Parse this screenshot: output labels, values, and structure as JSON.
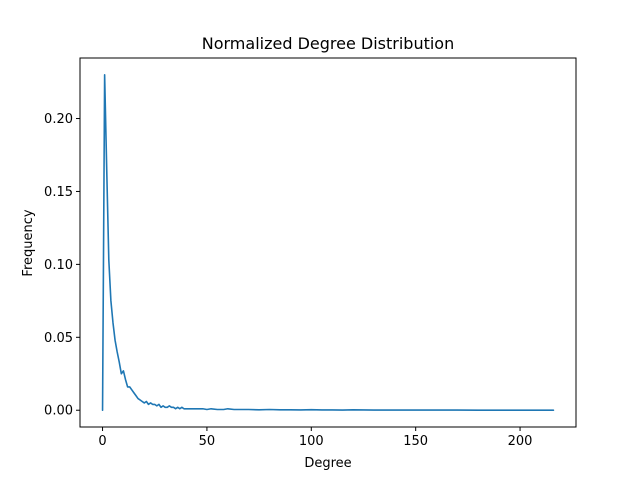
{
  "chart_data": {
    "type": "line",
    "title": "Normalized Degree Distribution",
    "xlabel": "Degree",
    "ylabel": "Frequency",
    "xlim": [
      -10.8,
      226.8
    ],
    "ylim": [
      -0.0115,
      0.2415
    ],
    "xticks": [
      0,
      50,
      100,
      150,
      200
    ],
    "xtick_labels": [
      "0",
      "50",
      "100",
      "150",
      "200"
    ],
    "yticks": [
      0.0,
      0.05,
      0.1,
      0.15,
      0.2
    ],
    "ytick_labels": [
      "0.00",
      "0.05",
      "0.10",
      "0.15",
      "0.20"
    ],
    "grid": false,
    "series": [
      {
        "color": "#1f77b4",
        "x": [
          0,
          1,
          2,
          3,
          4,
          5,
          6,
          7,
          8,
          9,
          10,
          11,
          12,
          13,
          14,
          15,
          16,
          17,
          18,
          19,
          20,
          21,
          22,
          23,
          24,
          25,
          26,
          27,
          28,
          29,
          30,
          31,
          32,
          33,
          34,
          35,
          36,
          37,
          38,
          39,
          40,
          42,
          44,
          46,
          48,
          50,
          52,
          55,
          58,
          60,
          63,
          66,
          70,
          75,
          80,
          85,
          90,
          95,
          100,
          105,
          110,
          115,
          120,
          130,
          140,
          150,
          160,
          170,
          180,
          190,
          200,
          210,
          216
        ],
        "y": [
          0.0,
          0.23,
          0.165,
          0.103,
          0.075,
          0.06,
          0.048,
          0.04,
          0.033,
          0.025,
          0.027,
          0.021,
          0.016,
          0.016,
          0.014,
          0.012,
          0.01,
          0.008,
          0.007,
          0.006,
          0.005,
          0.006,
          0.004,
          0.005,
          0.004,
          0.004,
          0.003,
          0.004,
          0.002,
          0.003,
          0.002,
          0.002,
          0.003,
          0.002,
          0.002,
          0.001,
          0.002,
          0.001,
          0.002,
          0.001,
          0.001,
          0.001,
          0.001,
          0.001,
          0.001,
          0.0005,
          0.001,
          0.0005,
          0.0005,
          0.001,
          0.0005,
          0.0005,
          0.0005,
          0.0003,
          0.0005,
          0.0003,
          0.0003,
          0.0002,
          0.0004,
          0.0002,
          0.0002,
          0.0001,
          0.0003,
          0.0001,
          0.0001,
          0.0001,
          0.0001,
          0.0001,
          0.0,
          0.0,
          0.0,
          0.0,
          0.0
        ]
      }
    ]
  }
}
